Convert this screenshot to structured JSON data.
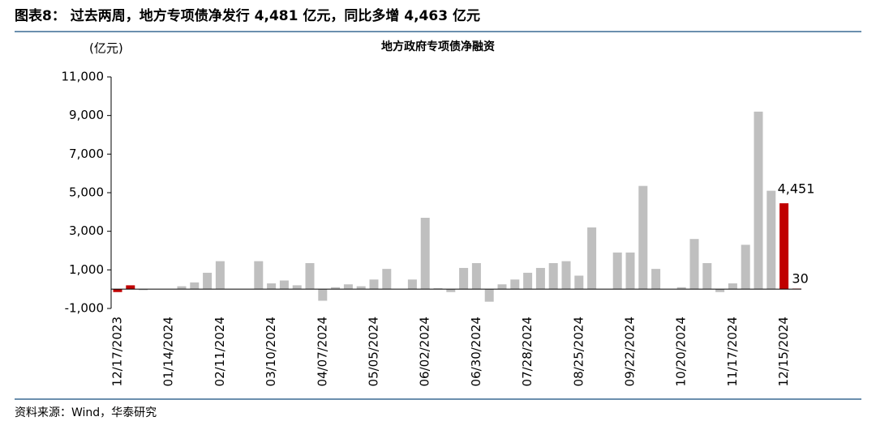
{
  "header": {
    "title": "图表8：  过去两周，地方专项债净发行 4,481 亿元，同比多增 4,463 亿元"
  },
  "source": "资料来源：Wind，华泰研究",
  "chart_data": {
    "type": "bar",
    "title": "地方政府专项债净融资",
    "y_label": "(亿元)",
    "categories": [
      "12/17/2023",
      null,
      null,
      null,
      "01/14/2024",
      null,
      null,
      null,
      "02/11/2024",
      null,
      null,
      null,
      "03/10/2024",
      null,
      null,
      null,
      "04/07/2024",
      null,
      null,
      null,
      "05/05/2024",
      null,
      null,
      null,
      "06/02/2024",
      null,
      null,
      null,
      "06/30/2024",
      null,
      null,
      null,
      "07/28/2024",
      null,
      null,
      null,
      "08/25/2024",
      null,
      null,
      null,
      "09/22/2024",
      null,
      null,
      null,
      "10/20/2024",
      null,
      null,
      null,
      "11/17/2024",
      null,
      null,
      null,
      "12/15/2024",
      null
    ],
    "values": [
      -150,
      200,
      -50,
      0,
      0,
      150,
      350,
      850,
      1450,
      0,
      0,
      1450,
      300,
      450,
      200,
      1350,
      -600,
      100,
      250,
      150,
      500,
      1050,
      0,
      500,
      3700,
      50,
      -150,
      1100,
      1350,
      -650,
      250,
      500,
      850,
      1100,
      1350,
      1450,
      700,
      3200,
      0,
      1900,
      1900,
      5350,
      1050,
      0,
      100,
      2600,
      1350,
      -150,
      300,
      2300,
      9200,
      5100,
      4451,
      30
    ],
    "value_labels": [
      null,
      null,
      null,
      null,
      null,
      null,
      null,
      null,
      null,
      null,
      null,
      null,
      null,
      null,
      null,
      null,
      null,
      null,
      null,
      null,
      null,
      null,
      null,
      null,
      null,
      null,
      null,
      null,
      null,
      null,
      null,
      null,
      null,
      null,
      null,
      null,
      null,
      null,
      null,
      null,
      null,
      null,
      null,
      null,
      null,
      null,
      null,
      null,
      null,
      null,
      null,
      null,
      "4,451",
      "30"
    ],
    "colors": [
      "#c00000",
      "#c00000",
      "#bfbfbf",
      "#bfbfbf",
      "#bfbfbf",
      "#bfbfbf",
      "#bfbfbf",
      "#bfbfbf",
      "#bfbfbf",
      "#bfbfbf",
      "#bfbfbf",
      "#bfbfbf",
      "#bfbfbf",
      "#bfbfbf",
      "#bfbfbf",
      "#bfbfbf",
      "#bfbfbf",
      "#bfbfbf",
      "#bfbfbf",
      "#bfbfbf",
      "#bfbfbf",
      "#bfbfbf",
      "#bfbfbf",
      "#bfbfbf",
      "#bfbfbf",
      "#bfbfbf",
      "#bfbfbf",
      "#bfbfbf",
      "#bfbfbf",
      "#bfbfbf",
      "#bfbfbf",
      "#bfbfbf",
      "#bfbfbf",
      "#bfbfbf",
      "#bfbfbf",
      "#bfbfbf",
      "#bfbfbf",
      "#bfbfbf",
      "#bfbfbf",
      "#bfbfbf",
      "#bfbfbf",
      "#bfbfbf",
      "#bfbfbf",
      "#bfbfbf",
      "#bfbfbf",
      "#bfbfbf",
      "#bfbfbf",
      "#bfbfbf",
      "#bfbfbf",
      "#bfbfbf",
      "#bfbfbf",
      "#bfbfbf",
      "#c00000",
      "#c00000"
    ],
    "ylim": [
      -1000,
      11000
    ],
    "yticks": [
      {
        "value": -1000,
        "label": "-1,000"
      },
      {
        "value": 1000,
        "label": "1,000"
      },
      {
        "value": 3000,
        "label": "3,000"
      },
      {
        "value": 5000,
        "label": "5,000"
      },
      {
        "value": 7000,
        "label": "7,000"
      },
      {
        "value": 9000,
        "label": "9,000"
      },
      {
        "value": 11000,
        "label": "11,000"
      }
    ]
  }
}
